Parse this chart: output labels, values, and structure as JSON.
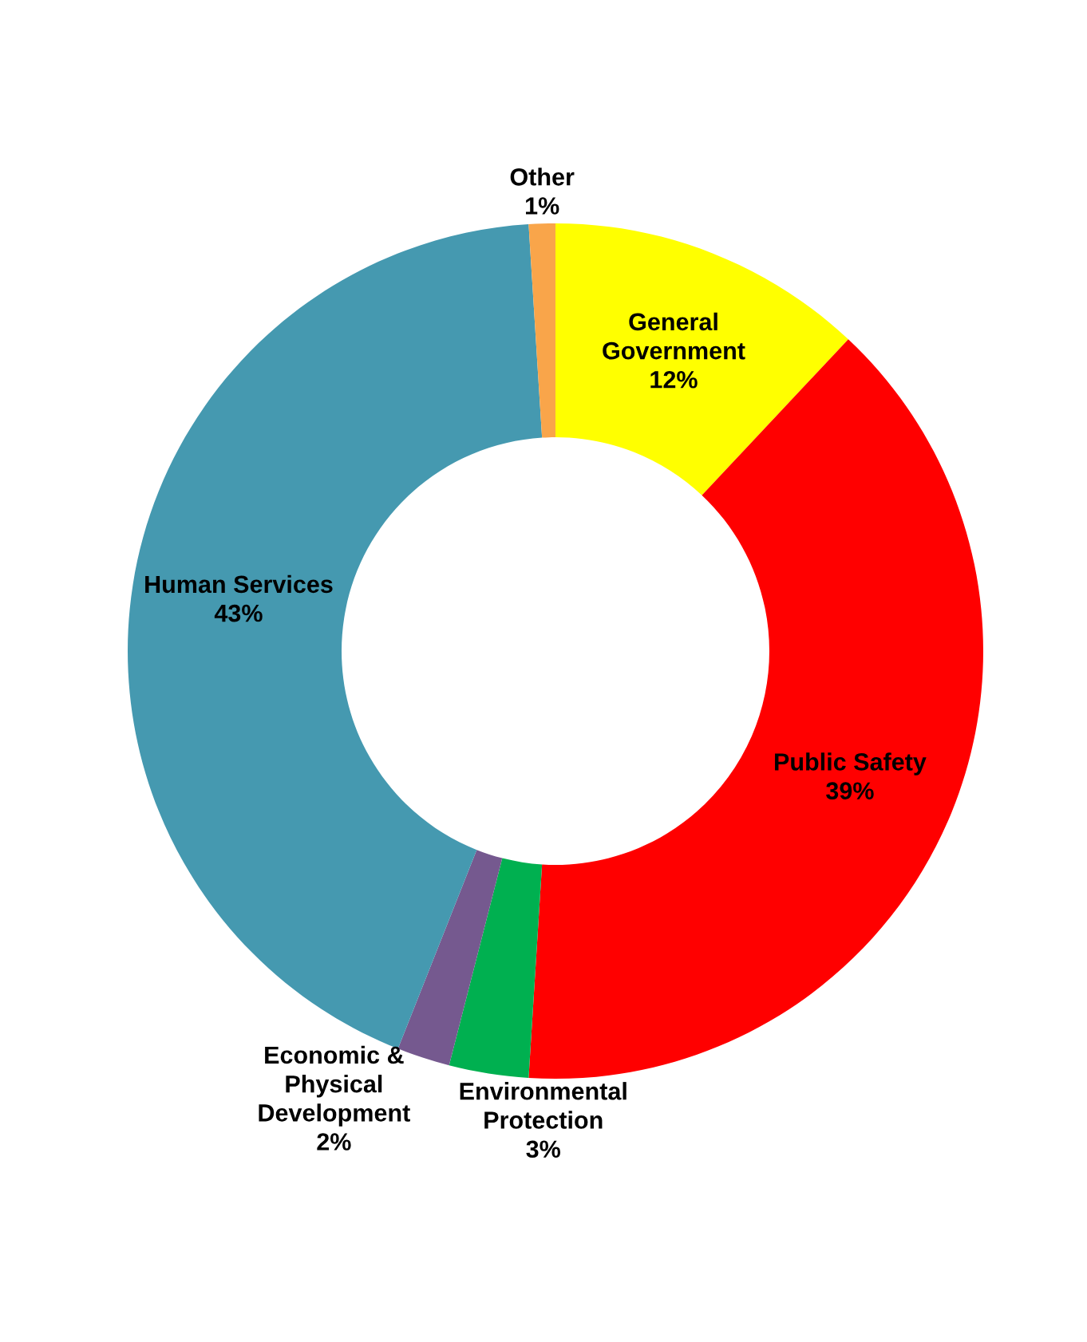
{
  "chart_data": {
    "type": "donut",
    "categories": [
      "General\nGovernment",
      "Public Safety",
      "Environmental\nProtection",
      "Economic &\nPhysical\nDevelopment",
      "Human Services",
      "Other"
    ],
    "values": [
      12,
      39,
      3,
      2,
      43,
      1
    ],
    "value_labels": [
      "12%",
      "39%",
      "3%",
      "2%",
      "43%",
      "1%"
    ],
    "colors": [
      "#ffff00",
      "#ff0000",
      "#00b050",
      "#75598f",
      "#4599b0",
      "#f9a54a"
    ]
  }
}
